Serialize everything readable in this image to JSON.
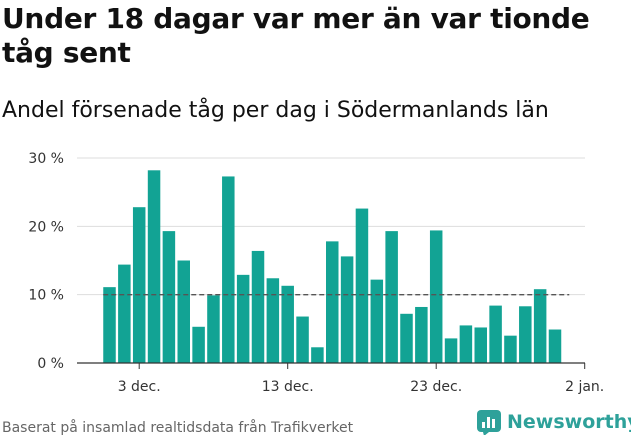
{
  "title": "Under 18 dagar var mer än var tionde tåg sent",
  "subtitle": "Andel försenade tåg per dag i Södermanlands län",
  "footer": "Baserat på insamlad realtidsdata från Trafikverket",
  "brand": "Newsworthy",
  "colors": {
    "bar": "#12a394",
    "grid": "#dddddd",
    "threshold": "#555555",
    "brand": "#2ea19a"
  },
  "chart_data": {
    "type": "bar",
    "title": "Under 18 dagar var mer än var tionde tåg sent",
    "subtitle": "Andel försenade tåg per dag i Södermanlands län",
    "xlabel": "",
    "ylabel": "",
    "x": [
      "2024-12-01",
      "2024-12-02",
      "2024-12-03",
      "2024-12-04",
      "2024-12-05",
      "2024-12-06",
      "2024-12-07",
      "2024-12-08",
      "2024-12-09",
      "2024-12-10",
      "2024-12-11",
      "2024-12-12",
      "2024-12-13",
      "2024-12-14",
      "2024-12-15",
      "2024-12-16",
      "2024-12-17",
      "2024-12-18",
      "2024-12-19",
      "2024-12-20",
      "2024-12-21",
      "2024-12-22",
      "2024-12-23",
      "2024-12-24",
      "2024-12-25",
      "2024-12-26",
      "2024-12-27",
      "2024-12-28",
      "2024-12-29",
      "2024-12-30",
      "2024-12-31"
    ],
    "values": [
      11.1,
      14.4,
      22.8,
      28.2,
      19.3,
      15.0,
      5.3,
      9.9,
      27.3,
      12.9,
      16.4,
      12.4,
      11.3,
      6.8,
      2.3,
      17.8,
      15.6,
      22.6,
      12.2,
      19.3,
      7.2,
      8.2,
      19.4,
      3.6,
      5.5,
      5.2,
      8.4,
      4.0,
      8.3,
      10.8,
      4.9
    ],
    "ylim": [
      0,
      30
    ],
    "yticks": [
      0,
      10,
      20,
      30
    ],
    "ytick_labels": [
      "0 %",
      "10 %",
      "20 %",
      "30 %"
    ],
    "xticks": [
      "2024-12-03",
      "2024-12-13",
      "2024-12-23",
      "2025-01-02"
    ],
    "xtick_labels": [
      "3 dec.",
      "13 dec.",
      "23 dec.",
      "2 jan."
    ],
    "threshold": 10,
    "grid": true,
    "legend": "none"
  }
}
